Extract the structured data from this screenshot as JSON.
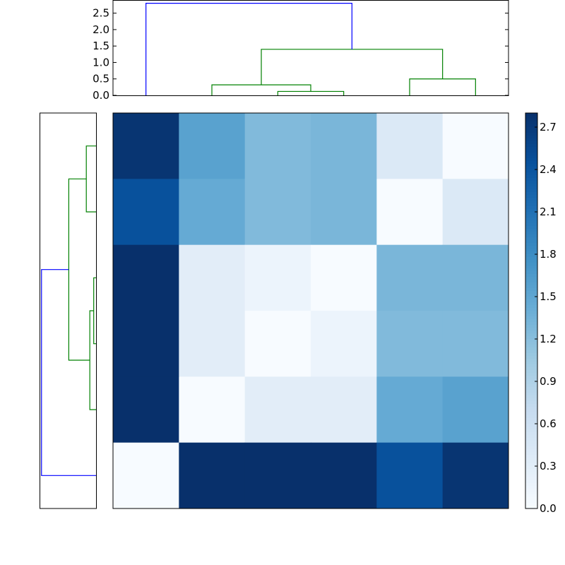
{
  "chart_data": [
    {
      "type": "dendrogram",
      "orientation": "top",
      "ylim": [
        0,
        2.9
      ],
      "yticks": [
        0.0,
        0.5,
        1.0,
        1.5,
        2.0,
        2.5
      ],
      "ytick_labels": [
        "0.0",
        "0.5",
        "1.0",
        "1.5",
        "2.0",
        "2.5"
      ],
      "leaf_count": 6,
      "links": [
        {
          "left": 2,
          "right": 3,
          "height": 0.12,
          "color": "#008000"
        },
        {
          "left": 1,
          "right": 2.5,
          "height": 0.32,
          "color": "#008000"
        },
        {
          "left": 4,
          "right": 5,
          "height": 0.5,
          "color": "#008000"
        },
        {
          "left": 1.75,
          "right": 4.5,
          "height": 1.4,
          "color": "#008000"
        },
        {
          "left": 0,
          "right": 3.125,
          "height": 2.8,
          "color": "#0000ff"
        }
      ]
    },
    {
      "type": "dendrogram",
      "orientation": "left",
      "leaf_count": 6,
      "xlim": [
        0,
        2.9
      ],
      "links": [
        {
          "left": 2,
          "right": 3,
          "height": 0.12,
          "color": "#008000"
        },
        {
          "left": 2.5,
          "right": 4,
          "height": 0.32,
          "color": "#008000"
        },
        {
          "left": 0,
          "right": 1,
          "height": 0.5,
          "color": "#008000"
        },
        {
          "left": 0.5,
          "right": 3.25,
          "height": 1.4,
          "color": "#008000"
        },
        {
          "left": 1.875,
          "right": 5,
          "height": 2.8,
          "color": "#0000ff"
        }
      ]
    },
    {
      "type": "heatmap",
      "rows": 6,
      "cols": 6,
      "values": [
        [
          2.75,
          1.55,
          1.25,
          1.3,
          0.4,
          0.0
        ],
        [
          2.45,
          1.45,
          1.25,
          1.3,
          0.0,
          0.4
        ],
        [
          2.8,
          0.3,
          0.15,
          0.0,
          1.3,
          1.3
        ],
        [
          2.8,
          0.3,
          0.0,
          0.15,
          1.25,
          1.25
        ],
        [
          2.8,
          0.0,
          0.3,
          0.3,
          1.45,
          1.55
        ],
        [
          0.0,
          2.8,
          2.8,
          2.8,
          2.45,
          2.75
        ]
      ],
      "colormap": "Blues",
      "vmin": 0.0,
      "vmax": 2.8
    },
    {
      "type": "colorbar",
      "colormap": "Blues",
      "vmin": 0.0,
      "vmax": 2.8,
      "ticks": [
        0.0,
        0.3,
        0.6,
        0.9,
        1.2,
        1.5,
        1.8,
        2.1,
        2.4,
        2.7
      ],
      "tick_labels": [
        "0.0",
        "0.3",
        "0.6",
        "0.9",
        "1.2",
        "1.5",
        "1.8",
        "2.1",
        "2.4",
        "2.7"
      ]
    }
  ]
}
